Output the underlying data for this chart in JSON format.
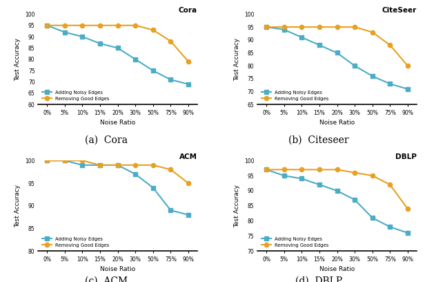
{
  "x_labels": [
    "0%",
    "5%",
    "10%",
    "15%",
    "20%",
    "30%",
    "50%",
    "75%",
    "90%"
  ],
  "cora": {
    "title": "Cora",
    "noisy": [
      95,
      92,
      90,
      87,
      85,
      80,
      75,
      71,
      69
    ],
    "good": [
      95,
      95,
      95,
      95,
      95,
      95,
      93,
      88,
      79
    ],
    "ylim": [
      60,
      100
    ],
    "yticks": [
      60,
      65,
      70,
      75,
      80,
      85,
      90,
      95,
      100
    ]
  },
  "citeseer": {
    "title": "CiteSeer",
    "noisy": [
      95,
      94,
      91,
      88,
      85,
      80,
      76,
      73,
      71
    ],
    "good": [
      95,
      95,
      95,
      95,
      95,
      95,
      93,
      88,
      80
    ],
    "ylim": [
      65,
      100
    ],
    "yticks": [
      65,
      70,
      75,
      80,
      85,
      90,
      95,
      100
    ]
  },
  "acm": {
    "title": "ACM",
    "noisy": [
      100,
      100,
      99,
      99,
      99,
      97,
      94,
      89,
      88
    ],
    "good": [
      100,
      100,
      100,
      99,
      99,
      99,
      99,
      98,
      95
    ],
    "ylim": [
      80,
      100
    ],
    "yticks": [
      80,
      85,
      90,
      95,
      100
    ]
  },
  "dblp": {
    "title": "DBLP",
    "noisy": [
      97,
      95,
      94,
      92,
      90,
      87,
      81,
      78,
      76
    ],
    "good": [
      97,
      97,
      97,
      97,
      97,
      96,
      95,
      92,
      84
    ],
    "ylim": [
      70,
      100
    ],
    "yticks": [
      70,
      75,
      80,
      85,
      90,
      95,
      100
    ]
  },
  "blue_color": "#4BACC6",
  "orange_color": "#E8A020",
  "legend_noisy": "Adding Noisy Edges",
  "legend_good": "Removing Good Edges",
  "xlabel": "Noise Ratio",
  "ylabel": "Test Accuracy",
  "marker_noisy": "s",
  "marker_good": "o",
  "linewidth": 1.5,
  "markersize": 4.5,
  "caption_a": "(a)  Cora",
  "caption_b": "(b)  Citeseer",
  "caption_c": "(c)  ACM",
  "caption_d": "(d)  DBLP"
}
